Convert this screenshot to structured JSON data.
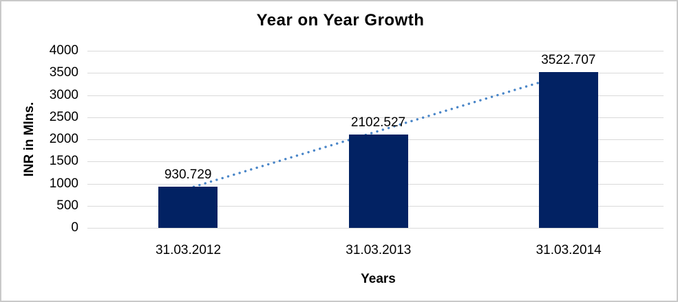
{
  "chart_data": {
    "type": "bar",
    "title": "Year on Year Growth",
    "xlabel": "Years",
    "ylabel": "INR in Mlns.",
    "categories": [
      "31.03.2012",
      "31.03.2013",
      "31.03.2014"
    ],
    "values": [
      930.729,
      2102.527,
      3522.707
    ],
    "data_labels": [
      "930.729",
      "2102.527",
      "3522.707"
    ],
    "ylim": [
      0,
      4000
    ],
    "ytick_step": 500,
    "yticks": [
      "0",
      "500",
      "1000",
      "1500",
      "2000",
      "2500",
      "3000",
      "3500",
      "4000"
    ],
    "grid": "horizontal",
    "legend": "none",
    "trendline": {
      "type": "linear",
      "style": "dotted"
    },
    "colors": {
      "bar": "#022263",
      "trendline": "#4a86c8",
      "gridline": "#d9d9d9",
      "text": "#000000",
      "frame_border": "#c9c9c9",
      "background": "#ffffff"
    }
  }
}
